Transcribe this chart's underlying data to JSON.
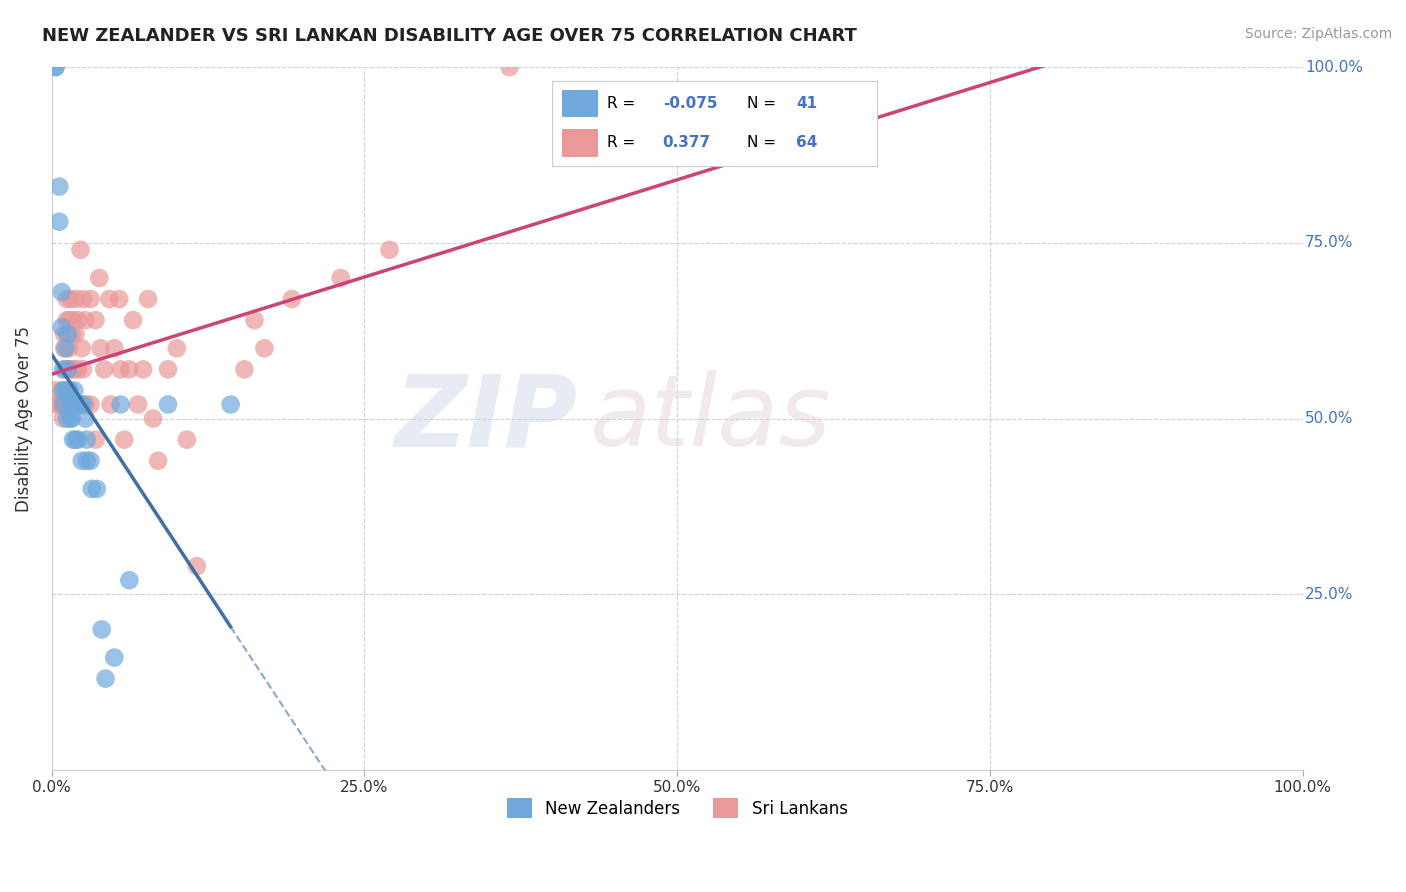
{
  "title": "NEW ZEALANDER VS SRI LANKAN DISABILITY AGE OVER 75 CORRELATION CHART",
  "source": "Source: ZipAtlas.com",
  "ylabel": "Disability Age Over 75",
  "xlim": [
    0,
    1.0
  ],
  "ylim": [
    0,
    1.0
  ],
  "xticks": [
    0.0,
    0.25,
    0.5,
    0.75,
    1.0
  ],
  "yticks": [
    0.25,
    0.5,
    0.75,
    1.0
  ],
  "xticklabels": [
    "0.0%",
    "25.0%",
    "50.0%",
    "75.0%",
    "100.0%"
  ],
  "yticklabels": [
    "25.0%",
    "50.0%",
    "75.0%",
    "100.0%"
  ],
  "nz_color": "#6fa8dc",
  "sri_color": "#ea9999",
  "nz_line_color": "#3d6fa8",
  "sri_line_color": "#cc4477",
  "nz_R": -0.075,
  "nz_N": 41,
  "sri_R": 0.377,
  "sri_N": 64,
  "watermark_zip": "ZIP",
  "watermark_atlas": "atlas",
  "background_color": "#ffffff",
  "grid_color": "#cccccc",
  "nz_x": [
    0.003,
    0.003,
    0.006,
    0.006,
    0.008,
    0.008,
    0.009,
    0.009,
    0.009,
    0.011,
    0.011,
    0.012,
    0.013,
    0.013,
    0.014,
    0.014,
    0.015,
    0.016,
    0.016,
    0.017,
    0.018,
    0.018,
    0.019,
    0.02,
    0.021,
    0.023,
    0.024,
    0.025,
    0.027,
    0.028,
    0.028,
    0.031,
    0.032,
    0.036,
    0.04,
    0.043,
    0.05,
    0.055,
    0.062,
    0.093,
    0.143
  ],
  "nz_y": [
    1.0,
    1.0,
    0.83,
    0.78,
    0.68,
    0.63,
    0.57,
    0.54,
    0.52,
    0.6,
    0.54,
    0.5,
    0.62,
    0.57,
    0.54,
    0.51,
    0.5,
    0.52,
    0.5,
    0.47,
    0.54,
    0.52,
    0.47,
    0.52,
    0.47,
    0.52,
    0.44,
    0.52,
    0.5,
    0.47,
    0.44,
    0.44,
    0.4,
    0.4,
    0.2,
    0.13,
    0.16,
    0.52,
    0.27,
    0.52,
    0.52
  ],
  "sri_x": [
    0.003,
    0.004,
    0.006,
    0.008,
    0.009,
    0.009,
    0.01,
    0.01,
    0.011,
    0.011,
    0.012,
    0.012,
    0.012,
    0.013,
    0.013,
    0.014,
    0.014,
    0.014,
    0.015,
    0.016,
    0.016,
    0.017,
    0.018,
    0.019,
    0.019,
    0.021,
    0.021,
    0.023,
    0.024,
    0.025,
    0.025,
    0.027,
    0.027,
    0.031,
    0.031,
    0.035,
    0.035,
    0.038,
    0.039,
    0.042,
    0.046,
    0.047,
    0.05,
    0.054,
    0.055,
    0.058,
    0.062,
    0.065,
    0.069,
    0.073,
    0.077,
    0.081,
    0.085,
    0.093,
    0.1,
    0.108,
    0.116,
    0.154,
    0.162,
    0.17,
    0.192,
    0.231,
    0.27,
    0.366
  ],
  "sri_y": [
    0.54,
    0.52,
    0.52,
    0.54,
    0.52,
    0.5,
    0.62,
    0.6,
    0.57,
    0.52,
    0.67,
    0.64,
    0.62,
    0.57,
    0.52,
    0.64,
    0.6,
    0.54,
    0.67,
    0.62,
    0.57,
    0.64,
    0.57,
    0.67,
    0.62,
    0.64,
    0.57,
    0.74,
    0.6,
    0.67,
    0.57,
    0.64,
    0.52,
    0.67,
    0.52,
    0.64,
    0.47,
    0.7,
    0.6,
    0.57,
    0.67,
    0.52,
    0.6,
    0.67,
    0.57,
    0.47,
    0.57,
    0.64,
    0.52,
    0.57,
    0.67,
    0.5,
    0.44,
    0.57,
    0.6,
    0.47,
    0.29,
    0.57,
    0.64,
    0.6,
    0.67,
    0.7,
    0.74,
    1.0
  ]
}
